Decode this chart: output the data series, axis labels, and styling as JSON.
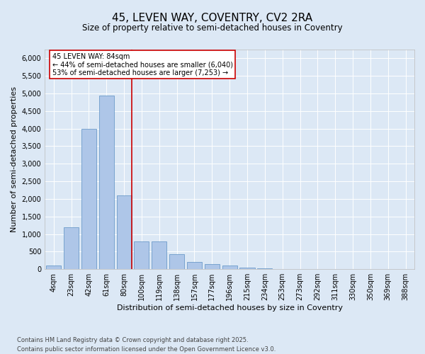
{
  "title1": "45, LEVEN WAY, COVENTRY, CV2 2RA",
  "title2": "Size of property relative to semi-detached houses in Coventry",
  "xlabel": "Distribution of semi-detached houses by size in Coventry",
  "ylabel": "Number of semi-detached properties",
  "footnote": "Contains HM Land Registry data © Crown copyright and database right 2025.\nContains public sector information licensed under the Open Government Licence v3.0.",
  "bar_labels": [
    "4sqm",
    "23sqm",
    "42sqm",
    "61sqm",
    "80sqm",
    "100sqm",
    "119sqm",
    "138sqm",
    "157sqm",
    "177sqm",
    "196sqm",
    "215sqm",
    "234sqm",
    "253sqm",
    "273sqm",
    "292sqm",
    "311sqm",
    "330sqm",
    "350sqm",
    "369sqm",
    "388sqm"
  ],
  "bar_values": [
    100,
    1200,
    4000,
    4950,
    2100,
    800,
    800,
    430,
    200,
    150,
    100,
    50,
    20,
    10,
    5,
    3,
    2,
    1,
    1,
    1,
    1
  ],
  "bar_color": "#aec6e8",
  "bar_edge_color": "#5a8fc2",
  "vline_index": 4,
  "annotation_title": "45 LEVEN WAY: 84sqm",
  "annotation_line1": "← 44% of semi-detached houses are smaller (6,040)",
  "annotation_line2": "53% of semi-detached houses are larger (7,253) →",
  "annotation_box_color": "#ffffff",
  "annotation_box_edge": "#cc0000",
  "vline_color": "#cc0000",
  "ylim": [
    0,
    6250
  ],
  "yticks": [
    0,
    500,
    1000,
    1500,
    2000,
    2500,
    3000,
    3500,
    4000,
    4500,
    5000,
    5500,
    6000
  ],
  "background_color": "#dce8f5",
  "plot_bg_color": "#dce8f5",
  "grid_color": "#ffffff",
  "title1_fontsize": 11,
  "title2_fontsize": 8.5,
  "axis_label_fontsize": 8,
  "tick_fontsize": 7,
  "annotation_fontsize": 7,
  "footnote_fontsize": 6
}
